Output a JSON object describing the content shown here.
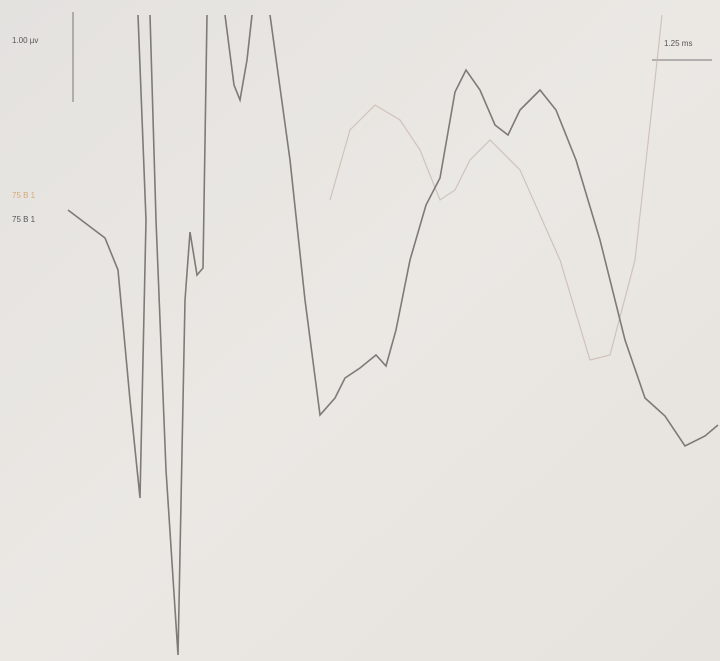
{
  "scale": {
    "amplitude": "1.00 µv",
    "time": "1.25 ms"
  },
  "traces": [
    {
      "label": "75 B 1"
    },
    {
      "label": "75 B 1"
    }
  ]
}
